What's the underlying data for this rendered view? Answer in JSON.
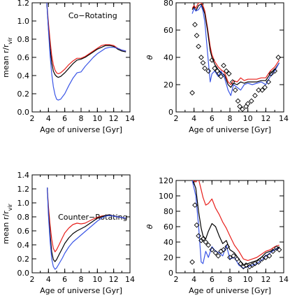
{
  "colors": {
    "red": "#e8201c",
    "black": "#000000",
    "blue": "#3a55e6"
  },
  "chart_data": [
    {
      "type": "line",
      "xlabel": "Age of universe [Gyr]",
      "ylabel": "mean r/r_vir",
      "ylabel_main": "mean r/r",
      "ylabel_sub": "vir",
      "annotation": "Co−Rotating",
      "xlim": [
        2,
        14
      ],
      "ylim": [
        0.0,
        1.2
      ],
      "xticks": [
        "2",
        "4",
        "6",
        "8",
        "10",
        "12",
        "14"
      ],
      "yticks": [
        "0.0",
        "0.2",
        "0.4",
        "0.6",
        "0.8",
        "1.0",
        "1.2"
      ],
      "series": [
        {
          "color": "red",
          "x": [
            3.8,
            4.0,
            4.2,
            4.4,
            4.6,
            4.8,
            5.0,
            5.2,
            5.5,
            6.0,
            6.5,
            7.0,
            7.5,
            8.0,
            8.5,
            9.0,
            9.5,
            10.0,
            10.5,
            11.0,
            11.5,
            12.0,
            12.5,
            13.0,
            13.5
          ],
          "y": [
            1.2,
            0.98,
            0.78,
            0.62,
            0.52,
            0.46,
            0.43,
            0.42,
            0.43,
            0.47,
            0.52,
            0.56,
            0.59,
            0.59,
            0.61,
            0.64,
            0.67,
            0.7,
            0.73,
            0.74,
            0.74,
            0.73,
            0.7,
            0.68,
            0.67
          ]
        },
        {
          "color": "black",
          "x": [
            3.8,
            4.0,
            4.2,
            4.4,
            4.6,
            4.8,
            5.0,
            5.2,
            5.5,
            6.0,
            6.5,
            7.0,
            7.5,
            8.0,
            8.5,
            9.0,
            9.5,
            10.0,
            10.5,
            11.0,
            11.5,
            12.0,
            12.5,
            13.0,
            13.5
          ],
          "y": [
            1.2,
            0.92,
            0.7,
            0.54,
            0.45,
            0.41,
            0.39,
            0.38,
            0.39,
            0.43,
            0.48,
            0.53,
            0.57,
            0.58,
            0.6,
            0.63,
            0.66,
            0.69,
            0.71,
            0.73,
            0.73,
            0.72,
            0.69,
            0.67,
            0.66
          ]
        },
        {
          "color": "blue",
          "x": [
            3.8,
            4.0,
            4.2,
            4.4,
            4.6,
            4.8,
            5.0,
            5.2,
            5.5,
            6.0,
            6.5,
            7.0,
            7.5,
            8.0,
            8.5,
            9.0,
            9.5,
            10.0,
            10.5,
            11.0,
            11.5,
            12.0,
            12.5,
            13.0,
            13.5
          ],
          "y": [
            1.2,
            0.9,
            0.62,
            0.42,
            0.28,
            0.19,
            0.14,
            0.13,
            0.14,
            0.2,
            0.29,
            0.37,
            0.43,
            0.44,
            0.5,
            0.55,
            0.6,
            0.64,
            0.67,
            0.7,
            0.71,
            0.71,
            0.7,
            0.68,
            0.67
          ]
        }
      ]
    },
    {
      "type": "line",
      "xlabel": "Age of universe [Gyr]",
      "ylabel": "θ",
      "xlim": [
        2,
        14
      ],
      "ylim": [
        0,
        80
      ],
      "xticks": [
        "2",
        "4",
        "6",
        "8",
        "10",
        "12",
        "14"
      ],
      "yticks": [
        "0",
        "20",
        "40",
        "60",
        "80"
      ],
      "series": [
        {
          "color": "red",
          "x": [
            3.8,
            4.0,
            4.2,
            4.5,
            4.8,
            5.0,
            5.2,
            5.5,
            5.8,
            6.0,
            6.3,
            6.7,
            7.0,
            7.4,
            7.8,
            8.1,
            8.4,
            8.8,
            9.2,
            9.6,
            10.0,
            10.5,
            11.0,
            11.5,
            12.0,
            12.5,
            13.0,
            13.5
          ],
          "y": [
            76,
            78,
            76,
            80,
            80,
            78,
            74,
            62,
            48,
            42,
            37,
            33,
            31,
            29,
            22,
            20,
            23,
            22,
            25,
            23,
            24,
            24,
            24,
            25,
            25,
            30,
            33,
            38
          ]
        },
        {
          "color": "black",
          "x": [
            3.8,
            4.0,
            4.2,
            4.5,
            4.8,
            5.0,
            5.2,
            5.5,
            5.8,
            6.0,
            6.3,
            6.7,
            7.0,
            7.4,
            7.8,
            8.1,
            8.4,
            8.8,
            9.2,
            9.6,
            10.0,
            10.5,
            11.0,
            11.5,
            12.0,
            12.5,
            13.0,
            13.5
          ],
          "y": [
            75,
            77,
            74,
            78,
            79,
            76,
            72,
            60,
            45,
            40,
            35,
            31,
            29,
            27,
            20,
            18,
            21,
            20,
            22,
            21,
            22,
            22,
            22,
            23,
            23,
            28,
            31,
            36
          ]
        },
        {
          "color": "blue",
          "x": [
            3.8,
            4.0,
            4.2,
            4.5,
            4.8,
            5.0,
            5.2,
            5.5,
            5.8,
            6.0,
            6.3,
            6.7,
            7.0,
            7.4,
            7.8,
            8.1,
            8.4,
            8.8,
            9.2,
            9.6,
            10.0,
            10.5,
            11.0,
            11.5,
            12.0,
            12.5,
            13.0,
            13.5
          ],
          "y": [
            72,
            76,
            74,
            75,
            78,
            74,
            66,
            44,
            22,
            28,
            30,
            26,
            30,
            25,
            16,
            12,
            20,
            18,
            16,
            20,
            21,
            20,
            21,
            22,
            20,
            26,
            30,
            36
          ]
        }
      ],
      "markers": {
        "shape": "diamond",
        "x": [
          3.8,
          4.1,
          4.3,
          4.5,
          4.8,
          5.0,
          5.2,
          5.6,
          6.0,
          6.3,
          6.6,
          6.8,
          7.0,
          7.3,
          7.6,
          7.9,
          8.3,
          8.6,
          8.9,
          9.1,
          9.4,
          9.8,
          10.0,
          10.4,
          10.8,
          11.2,
          11.6,
          11.9,
          12.3,
          12.6,
          13.0,
          13.4
        ],
        "y": [
          14,
          64,
          56,
          48,
          40,
          36,
          32,
          30,
          38,
          32,
          30,
          28,
          26,
          34,
          30,
          28,
          22,
          16,
          8,
          4,
          2,
          4,
          6,
          8,
          12,
          16,
          16,
          18,
          22,
          28,
          30,
          40
        ]
      }
    },
    {
      "type": "line",
      "xlabel": "Age of universe [Gyr]",
      "ylabel": "mean r/r_vir",
      "ylabel_main": "mean r/r",
      "ylabel_sub": "vir",
      "annotation": "Counter−Rotating",
      "xlim": [
        2,
        14
      ],
      "ylim": [
        0.0,
        1.4
      ],
      "xticks": [
        "2",
        "4",
        "6",
        "8",
        "10",
        "12",
        "14"
      ],
      "yticks": [
        "0.0",
        "0.2",
        "0.4",
        "0.6",
        "0.8",
        "1.0",
        "1.2",
        "1.4"
      ],
      "series": [
        {
          "color": "red",
          "x": [
            3.85,
            4.0,
            4.2,
            4.4,
            4.6,
            4.8,
            5.0,
            5.3,
            5.7,
            6.0,
            6.5,
            7.0,
            7.5,
            8.0,
            8.5,
            9.0,
            9.5,
            10.0,
            10.5,
            11.0,
            11.5,
            12.0,
            12.5,
            13.0,
            13.5
          ],
          "y": [
            1.22,
            0.95,
            0.68,
            0.48,
            0.35,
            0.3,
            0.33,
            0.4,
            0.5,
            0.57,
            0.64,
            0.69,
            0.71,
            0.7,
            0.71,
            0.74,
            0.77,
            0.79,
            0.81,
            0.82,
            0.83,
            0.81,
            0.8,
            0.79,
            0.78
          ]
        },
        {
          "color": "black",
          "x": [
            3.85,
            4.0,
            4.2,
            4.4,
            4.6,
            4.8,
            5.0,
            5.3,
            5.7,
            6.0,
            6.5,
            7.0,
            7.5,
            8.0,
            8.5,
            9.0,
            9.5,
            10.0,
            10.5,
            11.0,
            11.5,
            12.0,
            12.5,
            13.0,
            13.5
          ],
          "y": [
            1.22,
            0.88,
            0.55,
            0.3,
            0.19,
            0.16,
            0.19,
            0.26,
            0.35,
            0.42,
            0.5,
            0.56,
            0.6,
            0.63,
            0.66,
            0.7,
            0.74,
            0.78,
            0.8,
            0.82,
            0.83,
            0.81,
            0.8,
            0.79,
            0.78
          ]
        },
        {
          "color": "blue",
          "x": [
            3.85,
            4.0,
            4.2,
            4.4,
            4.6,
            4.8,
            5.0,
            5.3,
            5.7,
            6.0,
            6.5,
            7.0,
            7.5,
            8.0,
            8.5,
            9.0,
            9.5,
            10.0,
            10.5,
            11.0,
            11.5,
            12.0,
            12.5,
            13.0,
            13.5
          ],
          "y": [
            1.22,
            0.82,
            0.45,
            0.2,
            0.09,
            0.05,
            0.07,
            0.13,
            0.21,
            0.28,
            0.37,
            0.44,
            0.49,
            0.54,
            0.59,
            0.64,
            0.69,
            0.74,
            0.78,
            0.81,
            0.82,
            0.81,
            0.8,
            0.79,
            0.78
          ]
        }
      ]
    },
    {
      "type": "line",
      "xlabel": "Age of universe [Gyr]",
      "ylabel": "θ",
      "xlim": [
        2,
        14
      ],
      "ylim": [
        0,
        120
      ],
      "xticks": [
        "2",
        "4",
        "6",
        "8",
        "10",
        "12",
        "14"
      ],
      "yticks": [
        "0",
        "20",
        "40",
        "60",
        "80",
        "100",
        "120"
      ],
      "series": [
        {
          "color": "red",
          "x": [
            3.8,
            4.0,
            4.2,
            4.5,
            4.8,
            5.0,
            5.3,
            5.6,
            6.0,
            6.4,
            6.8,
            7.2,
            7.6,
            8.0,
            8.5,
            9.0,
            9.5,
            10.0,
            10.5,
            11.0,
            11.5,
            12.0,
            12.5,
            13.0,
            13.5
          ],
          "y": [
            120,
            120,
            118,
            122,
            108,
            98,
            88,
            90,
            96,
            84,
            76,
            66,
            58,
            48,
            36,
            28,
            18,
            16,
            18,
            20,
            24,
            28,
            30,
            34,
            36
          ]
        },
        {
          "color": "black",
          "x": [
            3.8,
            4.0,
            4.2,
            4.5,
            4.8,
            5.0,
            5.3,
            5.6,
            6.0,
            6.4,
            6.8,
            7.2,
            7.6,
            8.0,
            8.5,
            9.0,
            9.5,
            10.0,
            10.5,
            11.0,
            11.5,
            12.0,
            12.5,
            13.0,
            13.5
          ],
          "y": [
            120,
            116,
            110,
            80,
            58,
            48,
            44,
            54,
            64,
            60,
            48,
            38,
            42,
            30,
            26,
            18,
            10,
            12,
            14,
            16,
            20,
            26,
            28,
            30,
            34
          ]
        },
        {
          "color": "blue",
          "x": [
            3.8,
            4.0,
            4.2,
            4.5,
            4.8,
            5.0,
            5.3,
            5.6,
            6.0,
            6.4,
            6.8,
            7.2,
            7.6,
            8.0,
            8.5,
            9.0,
            9.5,
            10.0,
            10.5,
            11.0,
            11.5,
            12.0,
            12.5,
            13.0,
            13.5
          ],
          "y": [
            120,
            110,
            100,
            62,
            14,
            12,
            28,
            20,
            34,
            28,
            26,
            22,
            36,
            18,
            20,
            10,
            6,
            8,
            10,
            12,
            16,
            22,
            26,
            30,
            32
          ]
        }
      ],
      "markers": {
        "shape": "diamond",
        "x": [
          3.8,
          4.1,
          4.3,
          4.5,
          4.8,
          5.0,
          5.3,
          5.6,
          6.0,
          6.4,
          6.7,
          7.0,
          7.3,
          7.7,
          8.0,
          8.4,
          8.8,
          9.2,
          9.5,
          9.8,
          10.2,
          10.5,
          10.8,
          11.2,
          11.6,
          12.0,
          12.4,
          12.8,
          13.2,
          13.5
        ],
        "y": [
          14,
          88,
          62,
          48,
          42,
          44,
          40,
          36,
          30,
          26,
          22,
          28,
          30,
          34,
          20,
          22,
          18,
          12,
          8,
          10,
          8,
          10,
          12,
          14,
          18,
          20,
          22,
          28,
          32,
          30
        ]
      }
    }
  ]
}
